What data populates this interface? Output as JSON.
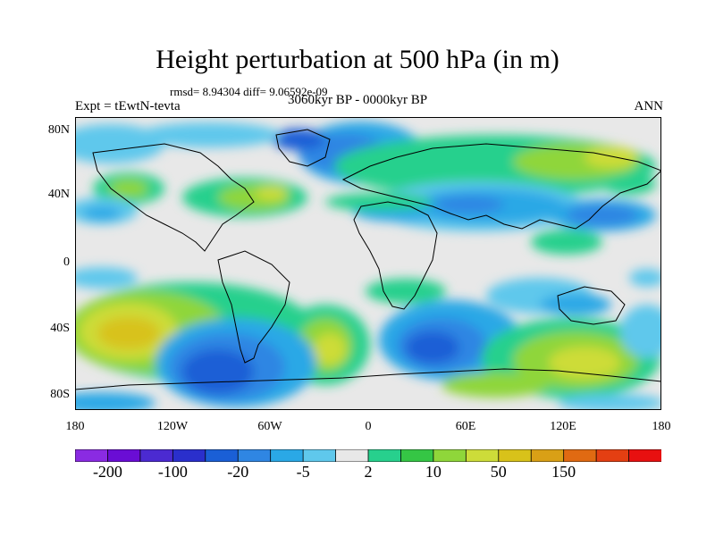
{
  "title": "Height perturbation at 500 hPa (in m)",
  "stats": "rmsd= 8.94304 diff= 9.06592e-09",
  "experiment": "Expt = tEwtN-tevta",
  "period": "3060kyr BP - 0000kyr BP",
  "season": "ANN",
  "y_ticks": [
    {
      "label": "80N",
      "lat": 80
    },
    {
      "label": "40N",
      "lat": 40
    },
    {
      "label": "0",
      "lat": 0
    },
    {
      "label": "40S",
      "lat": -40
    },
    {
      "label": "80S",
      "lat": -80
    }
  ],
  "x_ticks": [
    {
      "label": "180",
      "lon": -180
    },
    {
      "label": "120W",
      "lon": -120
    },
    {
      "label": "60W",
      "lon": -60
    },
    {
      "label": "0",
      "lon": 0
    },
    {
      "label": "60E",
      "lon": 60
    },
    {
      "label": "120E",
      "lon": 120
    },
    {
      "label": "180",
      "lon": 180
    }
  ],
  "colorbar": {
    "colors": [
      "#8a2be2",
      "#6a0dd5",
      "#4b2ad1",
      "#2a2fcc",
      "#1a5fd6",
      "#2f86e3",
      "#2aa8e6",
      "#5fc8ec",
      "#e8e8e8",
      "#27d08d",
      "#35c645",
      "#8fd63a",
      "#cddc39",
      "#d8c21a",
      "#d9a016",
      "#e06a12",
      "#e43f12",
      "#e81010"
    ],
    "labels": [
      {
        "text": "-200",
        "index": 1
      },
      {
        "text": "-100",
        "index": 3
      },
      {
        "text": "-20",
        "index": 5
      },
      {
        "text": "-5",
        "index": 7
      },
      {
        "text": "2",
        "index": 9
      },
      {
        "text": "10",
        "index": 11
      },
      {
        "text": "50",
        "index": 13
      },
      {
        "text": "150",
        "index": 15
      }
    ]
  }
}
